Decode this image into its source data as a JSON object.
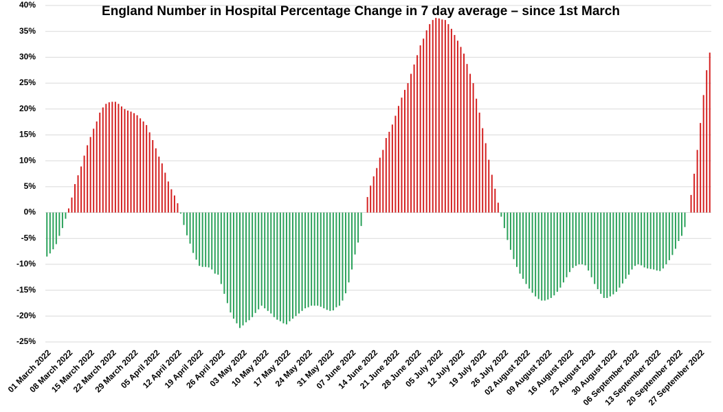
{
  "chart_data": {
    "type": "bar",
    "title": "England Number in Hospital Percentage Change in 7 day average – since 1st March",
    "categories": [
      "01 March 2022",
      null,
      null,
      null,
      null,
      null,
      null,
      "08 March 2022",
      null,
      null,
      null,
      null,
      null,
      null,
      "15 March 2022",
      null,
      null,
      null,
      null,
      null,
      null,
      "22 March 2022",
      null,
      null,
      null,
      null,
      null,
      null,
      "29 March 2022",
      null,
      null,
      null,
      null,
      null,
      null,
      "05 April 2022",
      null,
      null,
      null,
      null,
      null,
      null,
      "12 April 2022",
      null,
      null,
      null,
      null,
      null,
      null,
      "19 April 2022",
      null,
      null,
      null,
      null,
      null,
      null,
      "26 April 2022",
      null,
      null,
      null,
      null,
      null,
      null,
      "03 May 2022",
      null,
      null,
      null,
      null,
      null,
      null,
      "10 May 2022",
      null,
      null,
      null,
      null,
      null,
      null,
      "17 May 2022",
      null,
      null,
      null,
      null,
      null,
      null,
      "24 May 2022",
      null,
      null,
      null,
      null,
      null,
      null,
      "31 May 2022",
      null,
      null,
      null,
      null,
      null,
      null,
      "07 June 2022",
      null,
      null,
      null,
      null,
      null,
      null,
      "14 June 2022",
      null,
      null,
      null,
      null,
      null,
      null,
      "21 June 2022",
      null,
      null,
      null,
      null,
      null,
      null,
      "28 June 2022",
      null,
      null,
      null,
      null,
      null,
      null,
      "05 July 2022",
      null,
      null,
      null,
      null,
      null,
      null,
      "12 July 2022",
      null,
      null,
      null,
      null,
      null,
      null,
      "19 July 2022",
      null,
      null,
      null,
      null,
      null,
      null,
      "26 July 2022",
      null,
      null,
      null,
      null,
      null,
      null,
      "02 August 2022",
      null,
      null,
      null,
      null,
      null,
      null,
      "09 August 2022",
      null,
      null,
      null,
      null,
      null,
      null,
      "16 August 2022",
      null,
      null,
      null,
      null,
      null,
      null,
      "23 August 2022",
      null,
      null,
      null,
      null,
      null,
      null,
      "30 August 2022",
      null,
      null,
      null,
      null,
      null,
      null,
      "06 September 2022",
      null,
      null,
      null,
      null,
      null,
      null,
      "13 September 2022",
      null,
      null,
      null,
      null,
      null,
      null,
      "20 September 2022",
      null,
      null,
      null,
      null,
      null,
      null,
      "27 September 2022",
      null,
      null,
      null
    ],
    "values": [
      -8.5,
      -7.9,
      -7.1,
      -6.1,
      -4.5,
      -3.0,
      -1.2,
      0.8,
      2.9,
      5.5,
      7.2,
      8.9,
      11.0,
      13.0,
      14.6,
      16.2,
      17.6,
      19.3,
      20.3,
      21.0,
      21.3,
      21.4,
      21.4,
      21.0,
      20.5,
      20.0,
      19.7,
      19.5,
      19.2,
      18.8,
      18.2,
      17.6,
      16.9,
      15.5,
      14.0,
      12.4,
      10.8,
      9.5,
      7.7,
      6.0,
      4.5,
      3.3,
      1.8,
      -0.2,
      -2.4,
      -4.4,
      -6.0,
      -7.8,
      -9.1,
      -10.3,
      -10.5,
      -10.5,
      -10.6,
      -11.0,
      -11.8,
      -12.0,
      -13.8,
      -15.7,
      -17.5,
      -19.3,
      -20.5,
      -21.4,
      -22.3,
      -21.8,
      -21.2,
      -20.8,
      -20.2,
      -19.4,
      -18.7,
      -18.0,
      -18.5,
      -19.0,
      -19.5,
      -20.2,
      -20.7,
      -21.0,
      -21.4,
      -21.6,
      -21.0,
      -20.5,
      -20.0,
      -19.5,
      -19.0,
      -18.5,
      -18.3,
      -18.0,
      -18.0,
      -18.0,
      -18.2,
      -18.5,
      -18.8,
      -19.0,
      -18.9,
      -18.3,
      -18.0,
      -17.0,
      -15.6,
      -13.5,
      -11.0,
      -8.1,
      -5.8,
      -2.6,
      0.0,
      3.0,
      5.2,
      7.0,
      8.6,
      10.6,
      12.1,
      14.4,
      15.6,
      17.0,
      18.7,
      20.6,
      22.2,
      23.7,
      25.0,
      26.8,
      28.6,
      30.4,
      32.3,
      33.6,
      35.2,
      36.4,
      37.2,
      37.6,
      37.5,
      37.3,
      37.2,
      36.4,
      35.5,
      34.3,
      33.2,
      32.0,
      30.7,
      28.7,
      26.8,
      25.0,
      22.0,
      19.3,
      16.3,
      13.4,
      10.2,
      7.3,
      4.6,
      1.9,
      -0.8,
      -3.0,
      -5.3,
      -7.2,
      -9.0,
      -10.5,
      -11.8,
      -12.8,
      -13.8,
      -14.7,
      -15.5,
      -16.2,
      -16.7,
      -17.0,
      -17.0,
      -16.8,
      -16.5,
      -16.0,
      -15.3,
      -14.5,
      -13.5,
      -12.5,
      -11.5,
      -10.7,
      -10.3,
      -10.0,
      -10.0,
      -10.2,
      -11.2,
      -12.5,
      -13.8,
      -14.8,
      -15.7,
      -16.5,
      -16.5,
      -16.2,
      -15.8,
      -15.3,
      -14.5,
      -13.7,
      -12.8,
      -12.0,
      -11.0,
      -10.3,
      -10.0,
      -10.2,
      -10.6,
      -10.8,
      -10.9,
      -11.0,
      -11.2,
      -11.3,
      -10.8,
      -10.0,
      -9.2,
      -8.2,
      -7.0,
      -5.5,
      -4.5,
      -2.8,
      0.0,
      3.4,
      7.5,
      12.1,
      17.3,
      22.7,
      27.5,
      30.9
    ],
    "color_positive": "#d42020",
    "color_negative": "#2aa15a",
    "ylim": [
      -25,
      40
    ],
    "yticks": [
      {
        "value": -25,
        "label": "-25%"
      },
      {
        "value": -20,
        "label": "-20%"
      },
      {
        "value": -15,
        "label": "-15%"
      },
      {
        "value": -10,
        "label": "-10%"
      },
      {
        "value": -5,
        "label": "-5%"
      },
      {
        "value": 0,
        "label": "0%"
      },
      {
        "value": 5,
        "label": "5%"
      },
      {
        "value": 10,
        "label": "10%"
      },
      {
        "value": 15,
        "label": "15%"
      },
      {
        "value": 20,
        "label": "20%"
      },
      {
        "value": 25,
        "label": "25%"
      },
      {
        "value": 30,
        "label": "30%"
      },
      {
        "value": 35,
        "label": "35%"
      },
      {
        "value": 40,
        "label": "40%"
      }
    ],
    "grid": true
  }
}
